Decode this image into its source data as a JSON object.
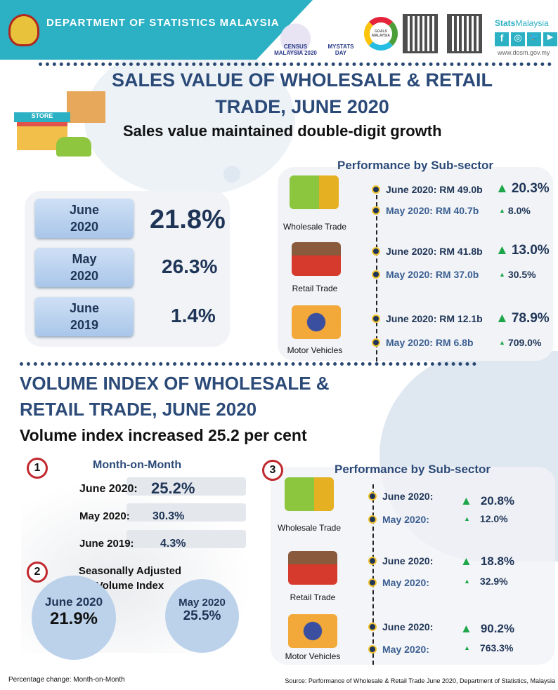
{
  "header": {
    "org": "DEPARTMENT OF STATISTICS MALAYSIA",
    "logos": [
      "CENSUS MALAYSIA 2020",
      "MYSTATS DAY",
      "GOALS MALAYSIA"
    ],
    "brand_bold": "Stats",
    "brand_light": "Malaysia",
    "social": [
      "f",
      "◎",
      "🐦",
      "▶"
    ],
    "website": "www.dosm.gov.my"
  },
  "sales": {
    "title1": "SALES VALUE OF WHOLESALE & RETAIL",
    "title2": "TRADE, JUNE 2020",
    "store_label": "STORE",
    "subtitle": "Sales value maintained double-digit growth",
    "periods": [
      {
        "l1": "June",
        "l2": "2020",
        "value": "21.8%"
      },
      {
        "l1": "May",
        "l2": "2020",
        "value": "26.3%"
      },
      {
        "l1": "June",
        "l2": "2019",
        "value": "1.4%"
      }
    ],
    "perf_title": "Performance by Sub-sector",
    "sectors": [
      {
        "name": "Wholesale Trade",
        "cur": "June 2020: RM 49.0b",
        "cur_pct": "20.3%",
        "prev": "May 2020: RM 40.7b",
        "prev_pct": "8.0%"
      },
      {
        "name": "Retail Trade",
        "cur": "June 2020: RM 41.8b",
        "cur_pct": "13.0%",
        "prev": "May 2020: RM 37.0b",
        "prev_pct": "30.5%"
      },
      {
        "name": "Motor Vehicles",
        "cur": "June 2020: RM 12.1b",
        "cur_pct": "78.9%",
        "prev": "May 2020: RM 6.8b",
        "prev_pct": "709.0%"
      }
    ]
  },
  "volume": {
    "title1": "VOLUME INDEX OF WHOLESALE &",
    "title2": "RETAIL TRADE, JUNE 2020",
    "subtitle": "Volume index increased 25.2 per cent",
    "mom": {
      "num": "1",
      "title": "Month-on-Month",
      "rows": [
        {
          "label": "June 2020:",
          "value": "25.2%"
        },
        {
          "label": "May 2020:",
          "value": "30.3%"
        },
        {
          "label": "June 2019:",
          "value": "4.3%"
        }
      ]
    },
    "sa": {
      "num": "2",
      "title1": "Seasonally Adjusted",
      "title2": "Volume Index",
      "a_label": "June 2020",
      "a_value": "21.9%",
      "b_label": "May 2020",
      "b_value": "25.5%"
    },
    "perf": {
      "num": "3",
      "title": "Performance by Sub-sector",
      "sectors": [
        {
          "name": "Wholesale Trade",
          "cur": "June 2020:",
          "cur_pct": "20.8%",
          "prev": "May 2020:",
          "prev_pct": "12.0%"
        },
        {
          "name": "Retail Trade",
          "cur": "June 2020:",
          "cur_pct": "18.8%",
          "prev": "May 2020:",
          "prev_pct": "32.9%"
        },
        {
          "name": "Motor Vehicles",
          "cur": "June 2020:",
          "cur_pct": "90.2%",
          "prev": "May 2020:",
          "prev_pct": "763.3%"
        }
      ]
    }
  },
  "footer": {
    "left": "Percentage change: Month-on-Month",
    "right": "Source: Performance of Wholesale & Retail Trade June 2020, Department of Statistics, Malaysia"
  },
  "colors": {
    "teal": "#2bb0c4",
    "navy": "#1f3557",
    "green": "#1da64a",
    "red": "#c0282d"
  }
}
